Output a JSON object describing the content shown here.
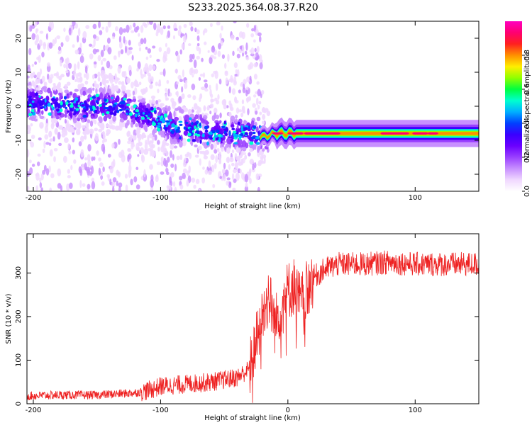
{
  "title": "S233.2025.364.08.37.R20",
  "colors": {
    "snr_line": "#ee2222",
    "axis": "#000000",
    "colormap": [
      "#ffffff",
      "#f0d8ff",
      "#c890ff",
      "#9a40ff",
      "#6a00ff",
      "#3a00ff",
      "#0040ff",
      "#00b0ff",
      "#00ffd0",
      "#00ff40",
      "#90ff00",
      "#ffee00",
      "#ff9000",
      "#ff2020",
      "#ff0070",
      "#ff00c0"
    ]
  },
  "chart_data": [
    {
      "type": "heatmap",
      "xlabel": "Height of straight line (km)",
      "ylabel": "Frequency (Hz)",
      "xlim": [
        -205,
        150
      ],
      "ylim": [
        -25,
        25
      ],
      "xticks": [
        -200,
        -100,
        0,
        100
      ],
      "xtick_labels": [
        "-200",
        "-100",
        "0",
        "100"
      ],
      "yticks": [
        -20,
        -10,
        0,
        10,
        20
      ],
      "ytick_labels": [
        "-20",
        "-10",
        "0",
        "10",
        "20"
      ],
      "ridge": {
        "description": "frequency of peak spectral amplitude vs height",
        "x": [
          -205,
          -190,
          -170,
          -150,
          -130,
          -110,
          -90,
          -70,
          -50,
          -30,
          -20,
          -10,
          0,
          20,
          50,
          80,
          100,
          120,
          150
        ],
        "y": [
          1,
          1,
          0,
          0,
          0,
          -3,
          -6,
          -7,
          -8,
          -8,
          -9,
          -8,
          -8,
          -8,
          -8,
          -8,
          -8,
          -8,
          -8
        ]
      },
      "colorbar": {
        "label": "Normalized spectral amplitude",
        "range": [
          0.0,
          1.0
        ],
        "ticks": [
          0.0,
          0.2,
          0.4,
          0.6,
          0.8
        ],
        "tick_labels": [
          "0.0",
          "0.2",
          "0.4",
          "0.6",
          "0.8"
        ]
      }
    },
    {
      "type": "line",
      "xlabel": "Height of straight line (km)",
      "ylabel": "SNR (10 * v/v)",
      "xlim": [
        -205,
        150
      ],
      "ylim": [
        0,
        390
      ],
      "xticks": [
        -200,
        -100,
        0,
        100
      ],
      "xtick_labels": [
        "-200",
        "-100",
        "0",
        "100"
      ],
      "yticks": [
        0,
        100,
        200,
        300
      ],
      "ytick_labels": [
        "0",
        "100",
        "200",
        "300"
      ],
      "series": [
        {
          "name": "SNR",
          "x": [
            -205,
            -180,
            -150,
            -120,
            -110,
            -100,
            -80,
            -60,
            -40,
            -30,
            -25,
            -20,
            -15,
            -10,
            -5,
            0,
            5,
            10,
            20,
            30,
            40,
            60,
            80,
            100,
            120,
            150
          ],
          "y": [
            18,
            20,
            20,
            25,
            30,
            40,
            45,
            50,
            60,
            80,
            140,
            200,
            250,
            180,
            230,
            260,
            270,
            230,
            290,
            310,
            320,
            320,
            325,
            320,
            320,
            320
          ]
        }
      ]
    }
  ]
}
